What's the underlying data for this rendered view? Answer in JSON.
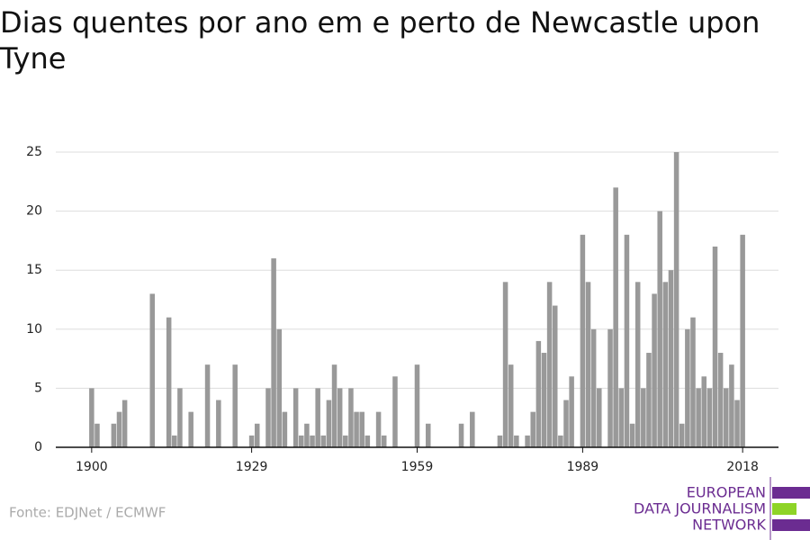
{
  "chart_data": {
    "type": "bar",
    "title": "Dias quentes por ano em e perto de Newcastle upon Tyne",
    "source": "Fonte: EDJNet / ECMWF",
    "logo": [
      "EUROPEAN",
      "DATA JOURNALISM",
      "NETWORK"
    ],
    "color": "#999999",
    "x": [
      1900,
      1901,
      1902,
      1903,
      1904,
      1905,
      1906,
      1907,
      1908,
      1909,
      1910,
      1911,
      1912,
      1913,
      1914,
      1915,
      1916,
      1917,
      1918,
      1919,
      1920,
      1921,
      1922,
      1923,
      1924,
      1925,
      1926,
      1927,
      1928,
      1929,
      1930,
      1931,
      1932,
      1933,
      1934,
      1935,
      1936,
      1937,
      1938,
      1939,
      1940,
      1941,
      1942,
      1943,
      1944,
      1945,
      1946,
      1947,
      1948,
      1949,
      1950,
      1951,
      1952,
      1953,
      1954,
      1955,
      1956,
      1957,
      1958,
      1959,
      1960,
      1961,
      1962,
      1963,
      1964,
      1965,
      1966,
      1967,
      1968,
      1969,
      1970,
      1971,
      1972,
      1973,
      1974,
      1975,
      1976,
      1977,
      1978,
      1979,
      1980,
      1981,
      1982,
      1983,
      1984,
      1985,
      1986,
      1987,
      1988,
      1989,
      1990,
      1991,
      1992,
      1993,
      1994,
      1995,
      1996,
      1997,
      1998,
      1999,
      2000,
      2001,
      2002,
      2003,
      2004,
      2005,
      2006,
      2007,
      2008,
      2009,
      2010,
      2011,
      2012,
      2013,
      2014,
      2015,
      2016,
      2017,
      2018
    ],
    "values": [
      5,
      2,
      0,
      0,
      2,
      3,
      4,
      0,
      0,
      0,
      0,
      13,
      0,
      0,
      11,
      1,
      5,
      0,
      3,
      0,
      0,
      7,
      0,
      4,
      0,
      0,
      7,
      0,
      0,
      1,
      2,
      0,
      5,
      16,
      10,
      3,
      0,
      5,
      1,
      2,
      1,
      5,
      1,
      4,
      7,
      5,
      1,
      5,
      3,
      3,
      1,
      0,
      3,
      1,
      0,
      6,
      0,
      0,
      0,
      7,
      0,
      2,
      0,
      0,
      0,
      0,
      0,
      2,
      0,
      3,
      0,
      0,
      0,
      0,
      1,
      14,
      7,
      1,
      0,
      1,
      3,
      9,
      8,
      14,
      12,
      1,
      4,
      6,
      0,
      18,
      14,
      10,
      5,
      0,
      10,
      22,
      5,
      18,
      2,
      14,
      5,
      8,
      13,
      20,
      14,
      15,
      25,
      2,
      10,
      11,
      5,
      6,
      5,
      17,
      8,
      5,
      7,
      4,
      18
    ],
    "xlim": [
      1893.5,
      2024.5
    ],
    "xticks": [
      1900,
      1929,
      1959,
      1989,
      2018
    ],
    "ylim": [
      0,
      25
    ],
    "yticks": [
      0,
      5,
      10,
      15,
      20,
      25
    ],
    "grid": true
  }
}
